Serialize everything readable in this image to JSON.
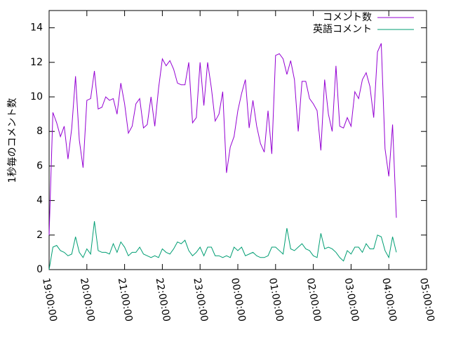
{
  "chart_data": {
    "type": "line",
    "ylabel": "1秒毎のコメント数",
    "x": [
      19.0,
      19.1,
      19.2,
      19.3,
      19.4,
      19.5,
      19.6,
      19.7,
      19.8,
      19.9,
      20.0,
      20.1,
      20.2,
      20.3,
      20.4,
      20.5,
      20.6,
      20.7,
      20.8,
      20.9,
      21.0,
      21.1,
      21.2,
      21.3,
      21.4,
      21.5,
      21.6,
      21.7,
      21.8,
      21.9,
      22.0,
      22.1,
      22.2,
      22.3,
      22.4,
      22.5,
      22.6,
      22.7,
      22.8,
      22.9,
      23.0,
      23.1,
      23.2,
      23.3,
      23.4,
      23.5,
      23.6,
      23.7,
      23.8,
      23.9,
      24.0,
      24.1,
      24.2,
      24.3,
      24.4,
      24.5,
      24.6,
      24.7,
      24.8,
      24.9,
      25.0,
      25.1,
      25.2,
      25.3,
      25.4,
      25.5,
      25.6,
      25.7,
      25.8,
      25.9,
      26.0,
      26.1,
      26.2,
      26.3,
      26.4,
      26.5,
      26.6,
      26.7,
      26.8,
      26.9,
      27.0,
      27.1,
      27.2,
      27.3,
      27.4,
      27.5,
      27.6,
      27.7,
      27.8,
      27.9,
      28.0,
      28.1,
      28.2
    ],
    "series": [
      {
        "name": "コメント数",
        "color": "#9400d3",
        "values": [
          2.0,
          9.1,
          8.5,
          7.7,
          8.3,
          6.4,
          8.2,
          11.2,
          7.5,
          5.9,
          9.8,
          9.9,
          11.5,
          9.3,
          9.4,
          10.0,
          9.8,
          9.9,
          9.0,
          10.8,
          9.6,
          7.9,
          8.3,
          9.6,
          9.9,
          8.2,
          8.4,
          10.0,
          8.3,
          10.5,
          12.2,
          11.8,
          12.1,
          11.6,
          10.8,
          10.7,
          10.7,
          12.0,
          8.5,
          8.8,
          12.0,
          9.5,
          12.0,
          10.5,
          8.6,
          9.0,
          10.3,
          5.6,
          7.1,
          7.7,
          9.2,
          10.2,
          11.0,
          8.2,
          9.8,
          8.3,
          7.3,
          6.8,
          9.2,
          6.7,
          12.4,
          12.5,
          12.2,
          11.3,
          12.1,
          11.0,
          8.0,
          10.9,
          10.9,
          9.9,
          9.6,
          9.2,
          6.9,
          11.0,
          9.0,
          8.0,
          11.8,
          8.3,
          8.2,
          8.8,
          8.3,
          10.3,
          9.9,
          11.0,
          11.4,
          10.6,
          8.8,
          12.6,
          13.1,
          7.0,
          5.4,
          8.4,
          3.0
        ]
      },
      {
        "name": "英語コメント",
        "color": "#009e73",
        "values": [
          0.0,
          1.3,
          1.4,
          1.1,
          1.0,
          0.8,
          0.9,
          1.9,
          1.0,
          0.7,
          1.2,
          0.9,
          2.8,
          1.1,
          1.0,
          1.0,
          0.9,
          1.5,
          1.0,
          1.6,
          1.3,
          0.8,
          1.0,
          1.0,
          1.3,
          0.9,
          0.8,
          0.7,
          0.8,
          0.7,
          1.2,
          1.0,
          0.9,
          1.2,
          1.6,
          1.5,
          1.7,
          1.1,
          0.8,
          1.0,
          1.3,
          0.8,
          1.3,
          1.3,
          0.8,
          0.8,
          0.7,
          0.8,
          0.7,
          1.3,
          1.1,
          1.3,
          0.8,
          0.9,
          1.0,
          0.8,
          0.7,
          0.7,
          0.8,
          1.3,
          1.3,
          1.1,
          0.9,
          2.4,
          1.2,
          1.1,
          1.3,
          1.5,
          1.2,
          1.1,
          0.8,
          0.7,
          2.1,
          1.2,
          1.3,
          1.2,
          1.0,
          0.7,
          0.5,
          1.1,
          0.9,
          1.3,
          1.3,
          1.0,
          1.5,
          1.2,
          1.2,
          2.0,
          1.9,
          1.1,
          0.7,
          1.9,
          1.0
        ]
      }
    ],
    "xlim": [
      19,
      29
    ],
    "xticks": [
      {
        "value": 19,
        "label": "19:00:00"
      },
      {
        "value": 20,
        "label": "20:00:00"
      },
      {
        "value": 21,
        "label": "21:00:00"
      },
      {
        "value": 22,
        "label": "22:00:00"
      },
      {
        "value": 23,
        "label": "23:00:00"
      },
      {
        "value": 24,
        "label": "00:00:00"
      },
      {
        "value": 25,
        "label": "01:00:00"
      },
      {
        "value": 26,
        "label": "02:00:00"
      },
      {
        "value": 27,
        "label": "03:00:00"
      },
      {
        "value": 28,
        "label": "04:00:00"
      },
      {
        "value": 29,
        "label": "05:00:00"
      }
    ],
    "ylim": [
      0,
      15
    ],
    "yticks": [
      0,
      2,
      4,
      6,
      8,
      10,
      12,
      14
    ],
    "legend": "upper right",
    "grid": false
  }
}
